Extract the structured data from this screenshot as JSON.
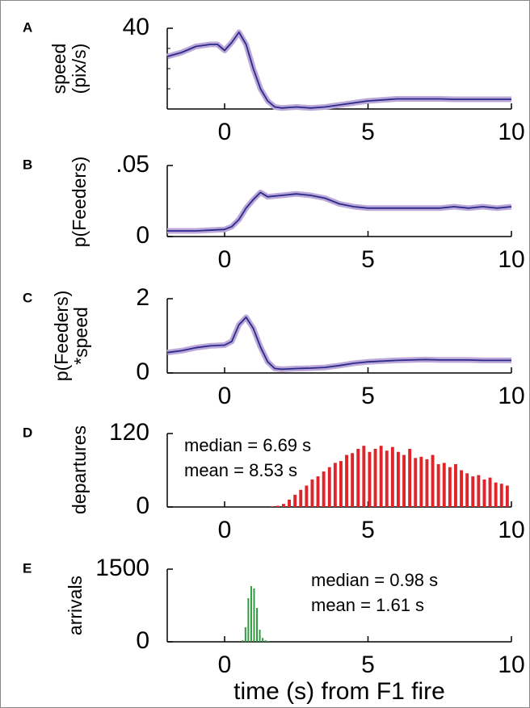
{
  "chart_data": [
    {
      "type": "line",
      "label": "A",
      "ylabel": [
        "speed",
        "(pix/s)"
      ],
      "color": "#2b2a8c",
      "band_color": "#bba8d8",
      "x": [
        -2,
        -1.5,
        -1,
        -0.5,
        -0.25,
        0,
        0.25,
        0.5,
        0.75,
        1,
        1.25,
        1.5,
        1.75,
        2,
        2.5,
        3,
        3.5,
        4,
        4.5,
        5,
        5.5,
        6,
        6.5,
        7,
        7.5,
        8,
        8.5,
        9,
        9.5,
        10
      ],
      "values": [
        26,
        28,
        31,
        32,
        32,
        29,
        33,
        38,
        32,
        20,
        10,
        4,
        1,
        0.5,
        1,
        0.5,
        1,
        2,
        3,
        4,
        4.5,
        5,
        5,
        5,
        5,
        4.8,
        4.8,
        4.8,
        4.8,
        4.8
      ],
      "xlim": [
        -2,
        10
      ],
      "xticks": [
        0,
        5,
        10
      ],
      "ylim": [
        0,
        40
      ],
      "yticks": [
        40
      ],
      "yminorticks": [
        10,
        20,
        30
      ]
    },
    {
      "type": "line",
      "label": "B",
      "ylabel": [
        "p(Feeders)"
      ],
      "color": "#2b2a8c",
      "band_color": "#bba8d8",
      "x": [
        -2,
        -1,
        0,
        0.25,
        0.5,
        0.75,
        1,
        1.25,
        1.5,
        2,
        2.5,
        3,
        3.5,
        4,
        4.5,
        5,
        5.5,
        6,
        6.5,
        7,
        7.5,
        8,
        8.5,
        9,
        9.5,
        10
      ],
      "values": [
        0.004,
        0.004,
        0.005,
        0.007,
        0.012,
        0.02,
        0.026,
        0.031,
        0.028,
        0.029,
        0.03,
        0.029,
        0.027,
        0.023,
        0.021,
        0.02,
        0.02,
        0.02,
        0.02,
        0.02,
        0.02,
        0.021,
        0.02,
        0.021,
        0.02,
        0.021
      ],
      "xlim": [
        -2,
        10
      ],
      "xticks": [
        0,
        5,
        10
      ],
      "ylim": [
        0,
        0.05
      ],
      "yticks": [
        0,
        {
          "value": 0.05,
          "label": ".05"
        }
      ]
    },
    {
      "type": "line",
      "label": "C",
      "ylabel": [
        "p(Feeders)",
        "*speed"
      ],
      "color": "#2b2a8c",
      "band_color": "#bba8d8",
      "x": [
        -2,
        -1.5,
        -1,
        -0.5,
        0,
        0.25,
        0.5,
        0.75,
        1,
        1.25,
        1.5,
        1.75,
        2,
        2.5,
        3,
        3.5,
        4,
        4.5,
        5,
        5.5,
        6,
        6.5,
        7,
        7.5,
        8,
        8.5,
        9,
        9.5,
        10
      ],
      "values": [
        0.55,
        0.6,
        0.68,
        0.73,
        0.75,
        0.85,
        1.3,
        1.5,
        1.2,
        0.7,
        0.3,
        0.12,
        0.1,
        0.12,
        0.13,
        0.15,
        0.2,
        0.26,
        0.3,
        0.32,
        0.34,
        0.35,
        0.36,
        0.35,
        0.35,
        0.35,
        0.34,
        0.34,
        0.34
      ],
      "xlim": [
        -2,
        10
      ],
      "xticks": [
        0,
        5,
        10
      ],
      "ylim": [
        0,
        2
      ],
      "yticks": [
        0,
        2
      ]
    },
    {
      "type": "histogram",
      "label": "D",
      "ylabel": [
        "departures"
      ],
      "color": "#e0242a",
      "annotations": [
        "median = 6.69 s",
        "mean = 8.53 s"
      ],
      "bins": [
        1.6,
        1.8,
        2.0,
        2.2,
        2.4,
        2.6,
        2.8,
        3.0,
        3.2,
        3.4,
        3.6,
        3.8,
        4.0,
        4.2,
        4.4,
        4.6,
        4.8,
        5.0,
        5.2,
        5.4,
        5.6,
        5.8,
        6.0,
        6.2,
        6.4,
        6.6,
        6.8,
        7.0,
        7.2,
        7.4,
        7.6,
        7.8,
        8.0,
        8.2,
        8.4,
        8.6,
        8.8,
        9.0,
        9.2,
        9.4,
        9.6,
        9.8,
        10.0
      ],
      "values": [
        1,
        2,
        5,
        12,
        20,
        28,
        35,
        45,
        50,
        58,
        65,
        72,
        75,
        85,
        88,
        95,
        100,
        90,
        95,
        100,
        92,
        98,
        90,
        85,
        95,
        80,
        82,
        78,
        85,
        70,
        72,
        65,
        70,
        60,
        55,
        50,
        52,
        45,
        48,
        40,
        38,
        35
      ],
      "xlim": [
        -2,
        10
      ],
      "xticks": [
        0,
        5,
        10
      ],
      "ylim": [
        0,
        120
      ],
      "yticks": [
        0,
        120
      ]
    },
    {
      "type": "histogram",
      "label": "E",
      "ylabel": [
        "arrivals"
      ],
      "color": "#2e9a3e",
      "annotations": [
        "median = 0.98 s",
        "mean = 1.61 s"
      ],
      "xlabel": "time (s) from F1 fire",
      "bins": [
        0.6,
        0.7,
        0.8,
        0.9,
        1.0,
        1.1,
        1.2,
        1.3,
        1.4,
        1.5,
        1.6
      ],
      "values": [
        30,
        300,
        900,
        1150,
        1100,
        700,
        250,
        80,
        30,
        10
      ],
      "xlim": [
        -2,
        10
      ],
      "xticks": [
        0,
        5,
        10
      ],
      "ylim": [
        0,
        1500
      ],
      "yticks": [
        0,
        1500
      ]
    }
  ]
}
